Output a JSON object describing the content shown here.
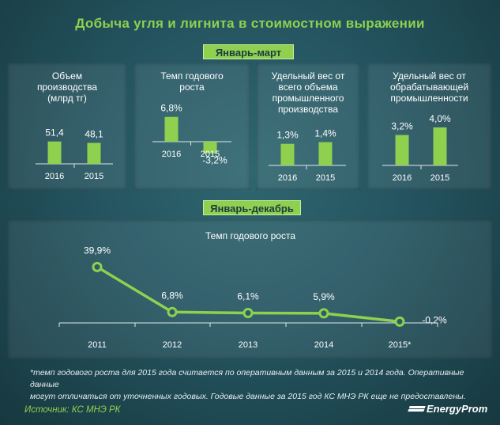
{
  "title": "Добыча угля и лигнита в стоимостном выражении",
  "sections": {
    "q1_label": "Январь-март",
    "year_label": "Январь-декабрь"
  },
  "chart_data": [
    {
      "type": "bar",
      "title": "Объем производства (млрд тг)",
      "title_lines": [
        "Объем",
        "производства",
        "(млрд тг)"
      ],
      "categories": [
        "2016",
        "2015"
      ],
      "values": [
        51.4,
        48.1
      ],
      "value_labels": [
        "51,4",
        "48,1"
      ],
      "color": "#8fd14f"
    },
    {
      "type": "bar",
      "title": "Темп годового роста",
      "title_lines": [
        "Темп годового",
        "роста"
      ],
      "categories": [
        "2016",
        "2015"
      ],
      "values": [
        6.8,
        -3.2
      ],
      "value_labels": [
        "6,8%",
        "-3,2%"
      ],
      "color": "#8fd14f"
    },
    {
      "type": "bar",
      "title": "Удельный вес от всего объема промышленного производства",
      "title_lines": [
        "Удельный вес от",
        "всего объема",
        "промышленного",
        "производства"
      ],
      "categories": [
        "2016",
        "2015"
      ],
      "values": [
        1.3,
        1.4
      ],
      "value_labels": [
        "1,3%",
        "1,4%"
      ],
      "color": "#8fd14f"
    },
    {
      "type": "bar",
      "title": "Удельный вес от обрабатывающей промышленности",
      "title_lines": [
        "Удельный вес от",
        "обрабатывающей",
        "промышленности"
      ],
      "categories": [
        "2016",
        "2015"
      ],
      "values": [
        3.2,
        4.0
      ],
      "value_labels": [
        "3,2%",
        "4,0%"
      ],
      "color": "#8fd14f"
    },
    {
      "type": "line",
      "title": "Темп годового роста",
      "categories": [
        "2011",
        "2012",
        "2013",
        "2014",
        "2015*"
      ],
      "values": [
        39.9,
        6.8,
        6.1,
        5.9,
        -0.2
      ],
      "value_labels": [
        "39,9%",
        "6,8%",
        "6,1%",
        "5,9%",
        "-0,2%"
      ],
      "color": "#8fd14f"
    }
  ],
  "footnote_lines": [
    "*темп годового роста для 2015 года считается по оперативным данным за 2015 и 2014 года. Оперативные данные",
    "могут отличаться от уточненных годовых. Годовые данные за 2015 год КС МНЭ РК еще не предоставлены."
  ],
  "source": "Источник: КС МНЭ РК",
  "logo": "EnergyProm"
}
